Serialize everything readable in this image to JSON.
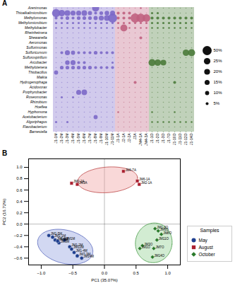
{
  "chart_data": [
    {
      "type": "bubble",
      "title": "A",
      "rows": [
        "Arenimonas",
        "Thioalkalimicrobium",
        "Methylomonas",
        "Methylomicrobium",
        "Methylobacter",
        "Rheinheimera",
        "Shewanella",
        "Aeromonas",
        "Sulfurimonas",
        "Sulfuricurvum",
        "Sulfurospirillum",
        "Arcobacter",
        "Methylotenera",
        "Thiobacillus",
        "Maikia",
        "Hydrogenophaga",
        "Acidovorax",
        "Porphyrobacter",
        "Roseomonas",
        "Rhizobium",
        "Hoeflea",
        "Hyphomona",
        "Acetobacterium",
        "Algoriphagus",
        "Flavobacterium",
        "Barnesiella"
      ],
      "series": [
        {
          "color": "#7B68C8",
          "categories": [
            "J1-1M",
            "J1-2M",
            "J1-3M",
            "J1-4M",
            "J1-5M",
            "J1-6M",
            "J1-7M",
            "J1-8M",
            "J1-9M",
            "J1-10M",
            "J1-11M"
          ],
          "sizes": [
            [
              0,
              0,
              0,
              0,
              0,
              0,
              0,
              30,
              0,
              0,
              0
            ],
            [
              40,
              25,
              20,
              15,
              15,
              18,
              10,
              5,
              8,
              12,
              15
            ],
            [
              5,
              5,
              8,
              5,
              8,
              8,
              8,
              10,
              15,
              20,
              50
            ],
            [
              3,
              3,
              3,
              3,
              3,
              3,
              3,
              3,
              3,
              3,
              3
            ],
            [
              2,
              2,
              2,
              2,
              2,
              2,
              2,
              2,
              2,
              2,
              2
            ],
            [
              0,
              0,
              0,
              0,
              0,
              0,
              0,
              0,
              0,
              0,
              0
            ],
            [
              0,
              0,
              0,
              0,
              0,
              0,
              0,
              0,
              0,
              0,
              0
            ],
            [
              0,
              0,
              0,
              0,
              0,
              0,
              0,
              0,
              0,
              0,
              0
            ],
            [
              0,
              0,
              0,
              0,
              0,
              0,
              0,
              0,
              0,
              0,
              0
            ],
            [
              0,
              5,
              15,
              10,
              5,
              5,
              5,
              8,
              5,
              5,
              5
            ],
            [
              0,
              0,
              0,
              0,
              0,
              0,
              0,
              0,
              0,
              0,
              0
            ],
            [
              0,
              0,
              12,
              15,
              5,
              5,
              0,
              0,
              0,
              0,
              3
            ],
            [
              0,
              8,
              8,
              8,
              8,
              8,
              8,
              5,
              5,
              5,
              5
            ],
            [
              10,
              0,
              0,
              0,
              0,
              0,
              0,
              0,
              0,
              0,
              0
            ],
            [
              0,
              0,
              0,
              0,
              0,
              0,
              0,
              0,
              0,
              0,
              0
            ],
            [
              0,
              0,
              0,
              0,
              0,
              0,
              0,
              0,
              0,
              0,
              0
            ],
            [
              0,
              0,
              0,
              0,
              0,
              0,
              0,
              0,
              0,
              0,
              0
            ],
            [
              0,
              0,
              0,
              0,
              15,
              18,
              0,
              0,
              0,
              0,
              0
            ],
            [
              0,
              3,
              0,
              3,
              0,
              0,
              0,
              0,
              0,
              0,
              0
            ],
            [
              0,
              0,
              0,
              0,
              0,
              0,
              0,
              0,
              0,
              0,
              0
            ],
            [
              0,
              0,
              0,
              0,
              0,
              0,
              0,
              0,
              0,
              0,
              0
            ],
            [
              0,
              0,
              0,
              0,
              0,
              0,
              0,
              0,
              0,
              0,
              0
            ],
            [
              0,
              0,
              0,
              0,
              0,
              0,
              0,
              10,
              0,
              0,
              0
            ],
            [
              3,
              0,
              3,
              0,
              0,
              0,
              0,
              0,
              0,
              0,
              0
            ],
            [
              0,
              0,
              0,
              0,
              0,
              0,
              0,
              0,
              0,
              0,
              0
            ],
            [
              0,
              0,
              0,
              0,
              0,
              0,
              0,
              0,
              0,
              0,
              0
            ]
          ]
        },
        {
          "color": "#C06080",
          "categories": [
            "J1-1A",
            "J2-1A",
            "J2-2A",
            "J3A",
            "JM4-1A",
            "JM4-3A"
          ],
          "sizes": [
            [
              0,
              0,
              0,
              0,
              2,
              0
            ],
            [
              5,
              5,
              5,
              0,
              0,
              0
            ],
            [
              5,
              5,
              5,
              50,
              45,
              35
            ],
            [
              3,
              3,
              3,
              3,
              3,
              3
            ],
            [
              2,
              30,
              2,
              2,
              2,
              2
            ],
            [
              0,
              0,
              0,
              0,
              0,
              0
            ],
            [
              0,
              0,
              0,
              0,
              5,
              0
            ],
            [
              0,
              0,
              0,
              0,
              0,
              0
            ],
            [
              0,
              0,
              0,
              0,
              0,
              0
            ],
            [
              0,
              0,
              0,
              0,
              0,
              0
            ],
            [
              0,
              0,
              0,
              0,
              0,
              0
            ],
            [
              0,
              0,
              0,
              0,
              0,
              0
            ],
            [
              0,
              0,
              0,
              0,
              0,
              0
            ],
            [
              0,
              0,
              0,
              0,
              0,
              0
            ],
            [
              0,
              0,
              0,
              0,
              0,
              0
            ],
            [
              0,
              0,
              0,
              5,
              0,
              0
            ],
            [
              0,
              0,
              0,
              0,
              0,
              0
            ],
            [
              0,
              0,
              0,
              0,
              0,
              0
            ],
            [
              0,
              0,
              0,
              0,
              0,
              0
            ],
            [
              0,
              0,
              0,
              0,
              0,
              0
            ],
            [
              0,
              0,
              0,
              0,
              0,
              0
            ],
            [
              2,
              0,
              0,
              0,
              0,
              0
            ],
            [
              0,
              0,
              0,
              0,
              0,
              0
            ],
            [
              0,
              0,
              0,
              0,
              0,
              0
            ],
            [
              0,
              0,
              0,
              0,
              0,
              0
            ],
            [
              0,
              0,
              0,
              0,
              0,
              0
            ]
          ]
        },
        {
          "color": "#4A7A3A",
          "categories": [
            "J1-1O",
            "J1-2O",
            "J1-3O",
            "J1-7O",
            "J1-10O",
            "J1-11O",
            "J1-12O",
            "J1-14O"
          ],
          "sizes": [
            [
              0,
              0,
              0,
              0,
              0,
              0,
              0,
              0
            ],
            [
              3,
              3,
              0,
              0,
              0,
              0,
              0,
              0
            ],
            [
              5,
              5,
              5,
              5,
              5,
              5,
              5,
              5
            ],
            [
              3,
              3,
              3,
              3,
              3,
              3,
              3,
              3
            ],
            [
              2,
              2,
              2,
              2,
              2,
              2,
              2,
              2
            ],
            [
              0,
              0,
              0,
              0,
              0,
              0,
              0,
              0
            ],
            [
              0,
              0,
              0,
              0,
              0,
              0,
              0,
              0
            ],
            [
              0,
              0,
              0,
              0,
              0,
              0,
              0,
              0
            ],
            [
              0,
              0,
              0,
              0,
              0,
              0,
              0,
              0
            ],
            [
              0,
              0,
              0,
              0,
              0,
              0,
              25,
              30
            ],
            [
              0,
              0,
              0,
              0,
              0,
              0,
              0,
              0
            ],
            [
              30,
              25,
              20,
              0,
              0,
              0,
              0,
              0
            ],
            [
              0,
              0,
              0,
              0,
              0,
              0,
              0,
              0
            ],
            [
              0,
              0,
              0,
              0,
              0,
              0,
              0,
              0
            ],
            [
              0,
              0,
              0,
              0,
              0,
              0,
              0,
              0
            ],
            [
              0,
              0,
              0,
              0,
              5,
              0,
              0,
              0
            ],
            [
              0,
              0,
              0,
              0,
              0,
              0,
              0,
              0
            ],
            [
              0,
              0,
              0,
              0,
              0,
              0,
              0,
              0
            ],
            [
              0,
              0,
              0,
              0,
              0,
              0,
              0,
              0
            ],
            [
              0,
              0,
              0,
              0,
              0,
              0,
              0,
              0
            ],
            [
              0,
              0,
              0,
              0,
              0,
              0,
              0,
              0
            ],
            [
              2,
              0,
              0,
              0,
              2,
              0,
              0,
              0
            ],
            [
              0,
              0,
              0,
              0,
              0,
              0,
              0,
              0
            ],
            [
              2,
              2,
              2,
              2,
              2,
              2,
              2,
              2
            ],
            [
              0,
              0,
              0,
              0,
              0,
              0,
              0,
              0
            ],
            [
              0,
              0,
              0,
              0,
              0,
              0,
              0,
              0
            ]
          ]
        }
      ],
      "size_legend": {
        "color": "#111111",
        "values": [
          50,
          25,
          20,
          15,
          10,
          5
        ],
        "labels": [
          "50%",
          "25%",
          "20%",
          "15%",
          "10%",
          "5%"
        ]
      }
    },
    {
      "type": "scatter",
      "title": "B",
      "xlabel": "PC1 (35.07%)",
      "ylabel": "PC2 (16.72%)",
      "xlim": [
        -1.2,
        1.2
      ],
      "ylim": [
        -0.72,
        1.15
      ],
      "xticks": [
        {
          "value": -1.0,
          "label": "−1.0"
        },
        {
          "value": -0.5,
          "label": "−0.5"
        },
        {
          "value": 0.0,
          "label": "0.0"
        },
        0.5,
        {
          "value": 1.0,
          "label": "1.0"
        }
      ],
      "yticks": [
        {
          "value": -0.6,
          "label": "−0.6"
        },
        {
          "value": -0.4,
          "label": "−0.4"
        },
        {
          "value": -0.2,
          "label": "−0.2"
        },
        {
          "value": 0.0,
          "label": "0.0"
        },
        0.2,
        0.4,
        0.6,
        0.8,
        {
          "value": 1.0,
          "label": "1.0"
        }
      ],
      "hlines": [
        0
      ],
      "vlines": [
        0
      ],
      "legend": "right",
      "legend_title": "Samples",
      "series": [
        {
          "name": "May",
          "color": "#1F3F8F",
          "marker": "circle",
          "labels": [
            "JM1-1M",
            "JM1-5M",
            "JM1-6M",
            "JM3M",
            "JM4M",
            "JM1-2M",
            "JM12M",
            "JM1-4M",
            "JM7-3M",
            "JM14M",
            "JM1M"
          ],
          "x": [
            -0.82,
            -0.88,
            -0.78,
            -0.72,
            -0.74,
            -0.55,
            -0.52,
            -0.48,
            -0.43,
            -0.36,
            -0.63
          ],
          "y": [
            -0.23,
            -0.2,
            -0.28,
            -0.33,
            -0.3,
            -0.4,
            -0.44,
            -0.5,
            -0.56,
            -0.6,
            -0.28
          ],
          "ellipse": {
            "cx": -0.62,
            "cy": -0.4,
            "width": 0.9,
            "height": 0.58,
            "angle": -18,
            "color": "#8899DD",
            "edge_color": "#5566BB"
          }
        },
        {
          "name": "August",
          "color": "#AA2030",
          "marker": "square",
          "labels": [
            "JM4-7A",
            "JM2-2A",
            "JM3A",
            "JM6-1A",
            "JM2-1A"
          ],
          "x": [
            0.3,
            -0.52,
            -0.43,
            0.52,
            0.55
          ],
          "y": [
            0.93,
            0.72,
            0.7,
            0.76,
            0.7
          ],
          "ellipse": {
            "cx": 0.05,
            "cy": 0.78,
            "width": 0.95,
            "height": 0.45,
            "angle": 5,
            "color": "#EE9999",
            "edge_color": "#BB4444"
          }
        },
        {
          "name": "October",
          "color": "#2A7A2A",
          "marker": "diamond",
          "labels": [
            "JM1-3O",
            "JM6O",
            "JM8O",
            "JM11O",
            "JM3O",
            "JM1O",
            "JM7O",
            "JM14O"
          ],
          "x": [
            0.8,
            0.85,
            0.9,
            0.83,
            0.6,
            0.56,
            0.78,
            0.76
          ],
          "y": [
            -0.08,
            -0.12,
            -0.18,
            -0.28,
            -0.38,
            -0.43,
            -0.43,
            -0.58
          ],
          "ellipse": {
            "cx": 0.78,
            "cy": -0.33,
            "width": 0.58,
            "height": 0.7,
            "angle": -5,
            "color": "#88CC88",
            "edge_color": "#449944"
          }
        }
      ]
    }
  ]
}
